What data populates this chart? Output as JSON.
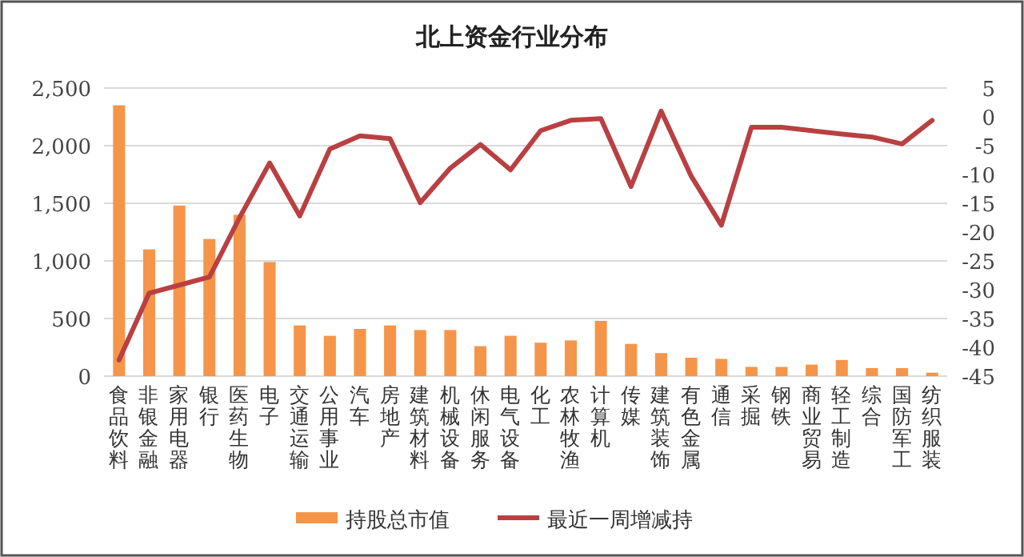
{
  "chart_data": {
    "type": "bar",
    "title": "北上资金行业分布",
    "categories": [
      "食品饮料",
      "非银金融",
      "家用电器",
      "银行",
      "医药生物",
      "电子",
      "交通运输",
      "公用事业",
      "汽车",
      "房地产",
      "建筑材料",
      "机械设备",
      "休闲服务",
      "电气设备",
      "化工",
      "农林牧渔",
      "计算机",
      "传媒",
      "建筑装饰",
      "有色金属",
      "通信",
      "采掘",
      "钢铁",
      "商业贸易",
      "轻工制造",
      "综合",
      "国防军工",
      "纺织服装"
    ],
    "series": [
      {
        "name": "持股总市值",
        "color": "#f5954a",
        "values": [
          2350,
          1100,
          1480,
          1190,
          1400,
          990,
          440,
          350,
          410,
          440,
          400,
          400,
          260,
          350,
          290,
          310,
          480,
          280,
          200,
          160,
          150,
          80,
          80,
          100,
          140,
          70,
          70,
          30
        ]
      },
      {
        "name": "最近一周增减持",
        "type": "line",
        "axis": "y2",
        "color": "#b94042",
        "values": [
          -42.2,
          -30.6,
          -29.2,
          -27.8,
          -17.5,
          -8.0,
          -17.2,
          -5.6,
          -3.3,
          -3.8,
          -14.9,
          -8.9,
          -4.8,
          -9.2,
          -2.4,
          -0.6,
          -0.3,
          -12.1,
          1.0,
          -10.3,
          -18.8,
          -1.8,
          -1.8,
          -2.4,
          -3.0,
          -3.5,
          -4.7,
          -0.6
        ]
      }
    ],
    "ylim": [
      0,
      2500
    ],
    "yticks": [
      {
        "value": 0,
        "label": "0"
      },
      {
        "value": 500,
        "label": "500"
      },
      {
        "value": 1000,
        "label": "1,000"
      },
      {
        "value": 1500,
        "label": "1,500"
      },
      {
        "value": 2000,
        "label": "2,000"
      },
      {
        "value": 2500,
        "label": "2,500"
      }
    ],
    "y2lim": [
      -45,
      5
    ],
    "y2ticks": [
      -45,
      -40,
      -35,
      -30,
      -25,
      -20,
      -15,
      -10,
      -5,
      0,
      5
    ],
    "grid": "y",
    "legend": "bottom"
  }
}
